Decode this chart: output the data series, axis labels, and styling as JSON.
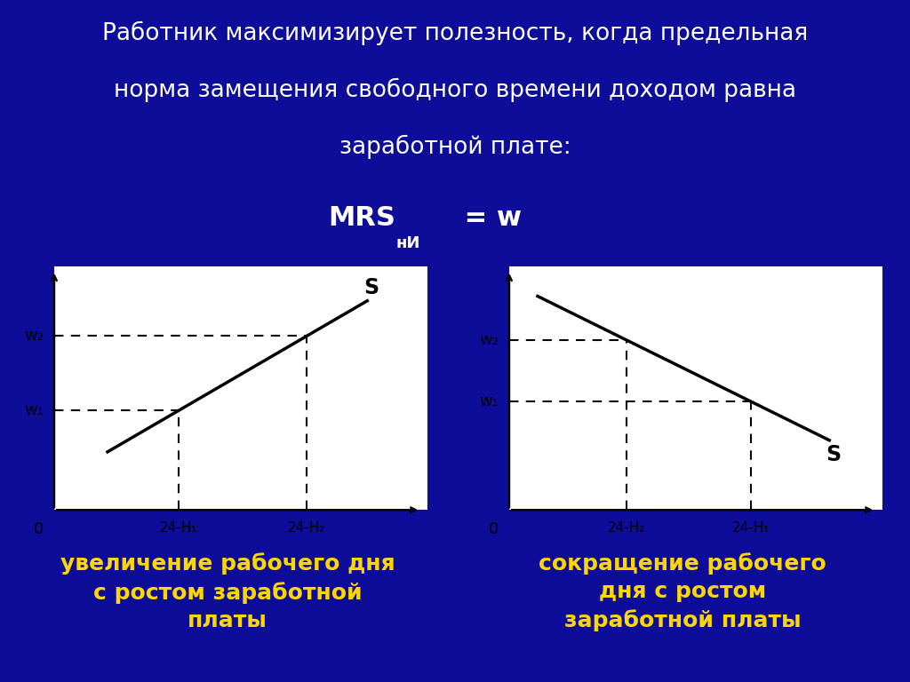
{
  "bg_color": "#0d0d9a",
  "title_line1": "Работник максимизирует полезность, когда предельная",
  "title_line2": "норма замещения свободного времени доходом равна",
  "title_line3": "заработной плате:",
  "title_color": "#ffffff",
  "formula_color": "#ffffff",
  "bottom_left_text": "увеличение рабочего дня\nс ростом заработной\nплаты",
  "bottom_right_text": "сокращение рабочего\nдня с ростом\nзаработной платы",
  "bottom_text_color": "#ffd700",
  "chart_bg": "#ffffff",
  "left_xlabel1": "24-H₁",
  "left_xlabel2": "24-H₂",
  "right_xlabel1": "24-H₂",
  "right_xlabel2": "24-H₁",
  "ylabel1": "w₁",
  "ylabel2": "w₂",
  "s_label": "S",
  "zero_label": "0"
}
